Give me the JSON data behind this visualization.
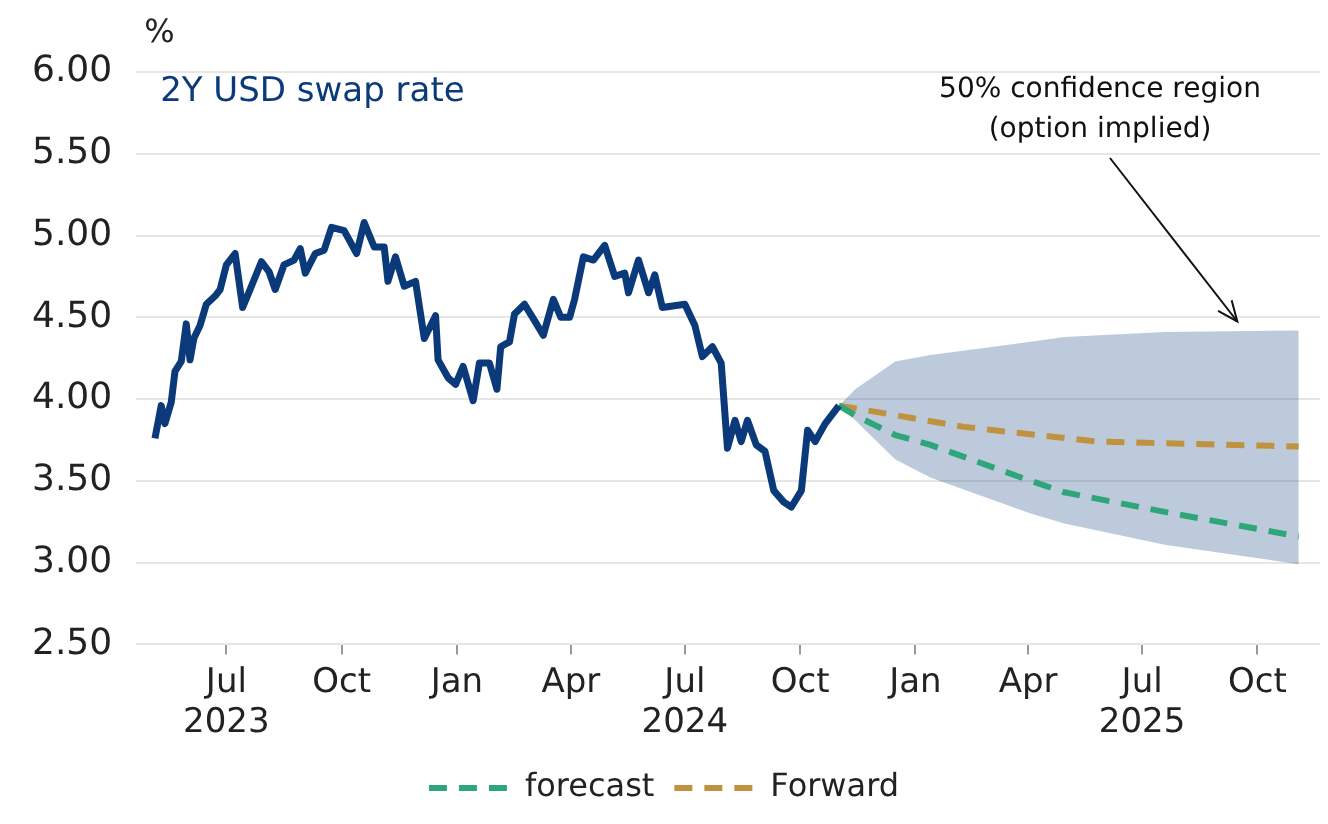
{
  "chart_data": {
    "type": "line",
    "title": "2Y USD swap rate",
    "ylabel": "%",
    "xlim": [
      "2023-04-20",
      "2025-11-20"
    ],
    "ylim": [
      2.5,
      6.0
    ],
    "xticks": [
      {
        "value": "2023-07-01",
        "label": "Jul\n2023"
      },
      {
        "value": "2023-10-01",
        "label": "Oct"
      },
      {
        "value": "2024-01-01",
        "label": "Jan"
      },
      {
        "value": "2024-04-01",
        "label": "Apr"
      },
      {
        "value": "2024-07-01",
        "label": "Jul\n2024"
      },
      {
        "value": "2024-10-01",
        "label": "Oct"
      },
      {
        "value": "2025-01-01",
        "label": "Jan"
      },
      {
        "value": "2025-04-01",
        "label": "Apr"
      },
      {
        "value": "2025-07-01",
        "label": "Jul\n2025"
      },
      {
        "value": "2025-10-01",
        "label": "Oct"
      }
    ],
    "yticks": [
      {
        "value": 2.5,
        "label": "2.50"
      },
      {
        "value": 3,
        "label": "3.00"
      },
      {
        "value": 3.5,
        "label": "3.50"
      },
      {
        "value": 4,
        "label": "4.00"
      },
      {
        "value": 4.5,
        "label": "4.50"
      },
      {
        "value": 5,
        "label": "5.00"
      },
      {
        "value": 5.5,
        "label": "5.50"
      },
      {
        "value": 6,
        "label": "6.00"
      }
    ],
    "grid": "y",
    "legend": "bottom",
    "annotations": [
      {
        "text": "50% confidence region\n(option implied)",
        "x": "2025-09-15",
        "y": 4.45
      }
    ],
    "series": [
      {
        "color": "#0b3a7a",
        "line_style": "solid",
        "x": [
          "2023-05-05",
          "2023-05-10",
          "2023-05-13",
          "2023-05-18",
          "2023-05-21",
          "2023-05-26",
          "2023-05-30",
          "2023-06-02",
          "2023-06-05",
          "2023-06-10",
          "2023-06-15",
          "2023-06-22",
          "2023-06-26",
          "2023-07-01",
          "2023-07-08",
          "2023-07-14",
          "2023-07-21",
          "2023-07-29",
          "2023-08-04",
          "2023-08-09",
          "2023-08-16",
          "2023-08-24",
          "2023-08-29",
          "2023-09-02",
          "2023-09-10",
          "2023-09-17",
          "2023-09-23",
          "2023-10-03",
          "2023-10-13",
          "2023-10-19",
          "2023-10-27",
          "2023-11-04",
          "2023-11-07",
          "2023-11-13",
          "2023-11-20",
          "2023-11-29",
          "2023-12-06",
          "2023-12-15",
          "2023-12-17",
          "2023-12-25",
          "2023-12-31",
          "2024-01-06",
          "2024-01-14",
          "2024-01-19",
          "2024-01-27",
          "2024-02-02",
          "2024-02-05",
          "2024-02-12",
          "2024-02-16",
          "2024-02-24",
          "2024-03-03",
          "2024-03-10",
          "2024-03-18",
          "2024-03-24",
          "2024-03-31",
          "2024-04-04",
          "2024-04-11",
          "2024-04-19",
          "2024-04-28",
          "2024-05-06",
          "2024-05-14",
          "2024-05-17",
          "2024-05-25",
          "2024-06-02",
          "2024-06-07",
          "2024-06-13",
          "2024-07-01",
          "2024-07-09",
          "2024-07-15",
          "2024-07-23",
          "2024-07-30",
          "2024-08-04",
          "2024-08-10",
          "2024-08-15",
          "2024-08-20",
          "2024-08-27",
          "2024-09-03",
          "2024-09-10",
          "2024-09-18",
          "2024-09-24",
          "2024-10-02",
          "2024-10-07",
          "2024-10-13",
          "2024-10-21",
          "2024-11-01"
        ],
        "values": [
          3.76,
          3.96,
          3.85,
          3.98,
          4.17,
          4.23,
          4.46,
          4.24,
          4.37,
          4.45,
          4.58,
          4.63,
          4.67,
          4.82,
          4.89,
          4.56,
          4.69,
          4.84,
          4.78,
          4.67,
          4.82,
          4.85,
          4.92,
          4.77,
          4.89,
          4.91,
          5.05,
          5.03,
          4.89,
          5.08,
          4.93,
          4.93,
          4.72,
          4.87,
          4.69,
          4.72,
          4.37,
          4.51,
          4.24,
          4.13,
          4.09,
          4.2,
          3.99,
          4.22,
          4.22,
          4.06,
          4.32,
          4.35,
          4.52,
          4.58,
          4.48,
          4.39,
          4.61,
          4.5,
          4.5,
          4.61,
          4.87,
          4.85,
          4.94,
          4.75,
          4.77,
          4.65,
          4.85,
          4.65,
          4.76,
          4.56,
          4.58,
          4.45,
          4.26,
          4.32,
          4.22,
          3.7,
          3.87,
          3.74,
          3.87,
          3.72,
          3.68,
          3.44,
          3.37,
          3.34,
          3.44,
          3.81,
          3.74,
          3.85,
          3.96
        ]
      },
      {
        "name": "forecast",
        "color": "#2fa57a",
        "line_style": "dashed",
        "x": [
          "2024-11-01",
          "2024-11-14",
          "2024-12-16",
          "2025-01-13",
          "2025-04-03",
          "2025-04-30",
          "2025-07-19",
          "2025-11-03"
        ],
        "values": [
          3.96,
          3.9,
          3.78,
          3.72,
          3.5,
          3.43,
          3.31,
          3.16
        ],
        "lower": [
          3.96,
          3.87,
          3.63,
          3.52,
          3.3,
          3.24,
          3.11,
          2.99
        ],
        "upper": [
          3.96,
          4.06,
          4.23,
          4.27,
          4.35,
          4.38,
          4.41,
          4.42
        ]
      },
      {
        "name": "Forward",
        "color": "#c0913f",
        "line_style": "dashed",
        "x": [
          "2024-11-01",
          "2025-02-09",
          "2025-05-26",
          "2025-11-03"
        ],
        "values": [
          3.96,
          3.83,
          3.74,
          3.71
        ]
      }
    ]
  }
}
